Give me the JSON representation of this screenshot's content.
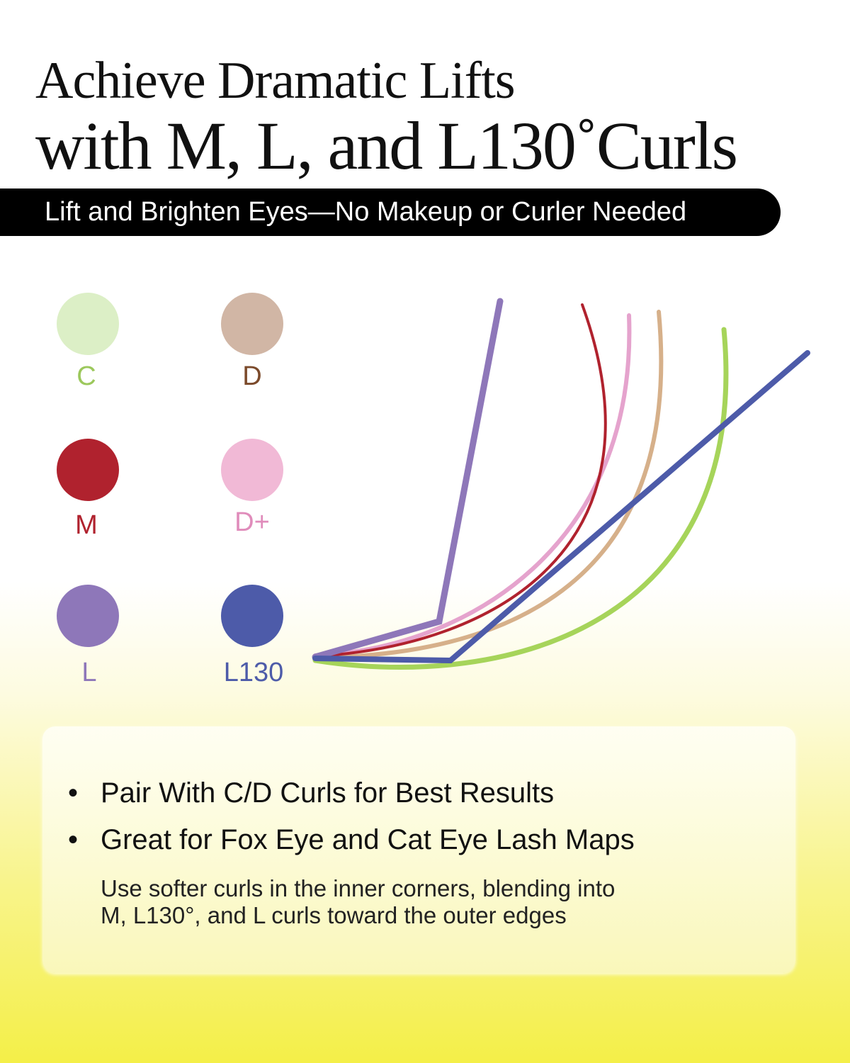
{
  "header": {
    "title_line1": "Achieve Dramatic Lifts",
    "title_line2": "with M, L, and L130˚Curls",
    "banner": "Lift and Brighten Eyes—No Makeup or Curler Needed"
  },
  "legend": [
    {
      "label": "C",
      "circle_color": "#dcefc6",
      "label_color": "#9cc85c"
    },
    {
      "label": "D",
      "circle_color": "#d1b6a5",
      "label_color": "#7b4a2b"
    },
    {
      "label": "M",
      "circle_color": "#b0222e",
      "label_color": "#b0222e"
    },
    {
      "label": "D+",
      "circle_color": "#f1b9d6",
      "label_color": "#e08cbb"
    },
    {
      "label": "L",
      "circle_color": "#8e77b9",
      "label_color": "#8e77b9"
    },
    {
      "label": "L130",
      "circle_color": "#4d5ba9",
      "label_color": "#4d5ba9"
    }
  ],
  "info": {
    "bullets": [
      "Pair With C/D Curls for Best Results",
      "Great for Fox Eye and Cat Eye Lash Maps"
    ],
    "note_line1": "Use softer curls in the inner corners, blending into",
    "note_line2": "M, L130°, and L curls toward the outer edges"
  }
}
